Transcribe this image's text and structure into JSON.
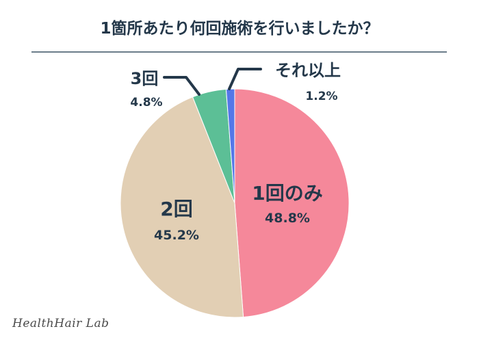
{
  "title": "1箇所あたり何回施術を行いましたか？",
  "brand": "HealthHair Lab",
  "chart_data": {
    "type": "pie",
    "title": "1箇所あたり何回施術を行いましたか？",
    "legend": "none",
    "slices": [
      {
        "label": "1回のみ",
        "value": 48.8,
        "value_label": "48.8%",
        "color": "#f5889a"
      },
      {
        "label": "2回",
        "value": 45.2,
        "value_label": "45.2%",
        "color": "#e2cfb4"
      },
      {
        "label": "3回",
        "value": 4.8,
        "value_label": "4.8%",
        "color": "#5cbf96"
      },
      {
        "label": "それ以上",
        "value": 1.2,
        "value_label": "1.2%",
        "color": "#5577e8"
      }
    ]
  }
}
